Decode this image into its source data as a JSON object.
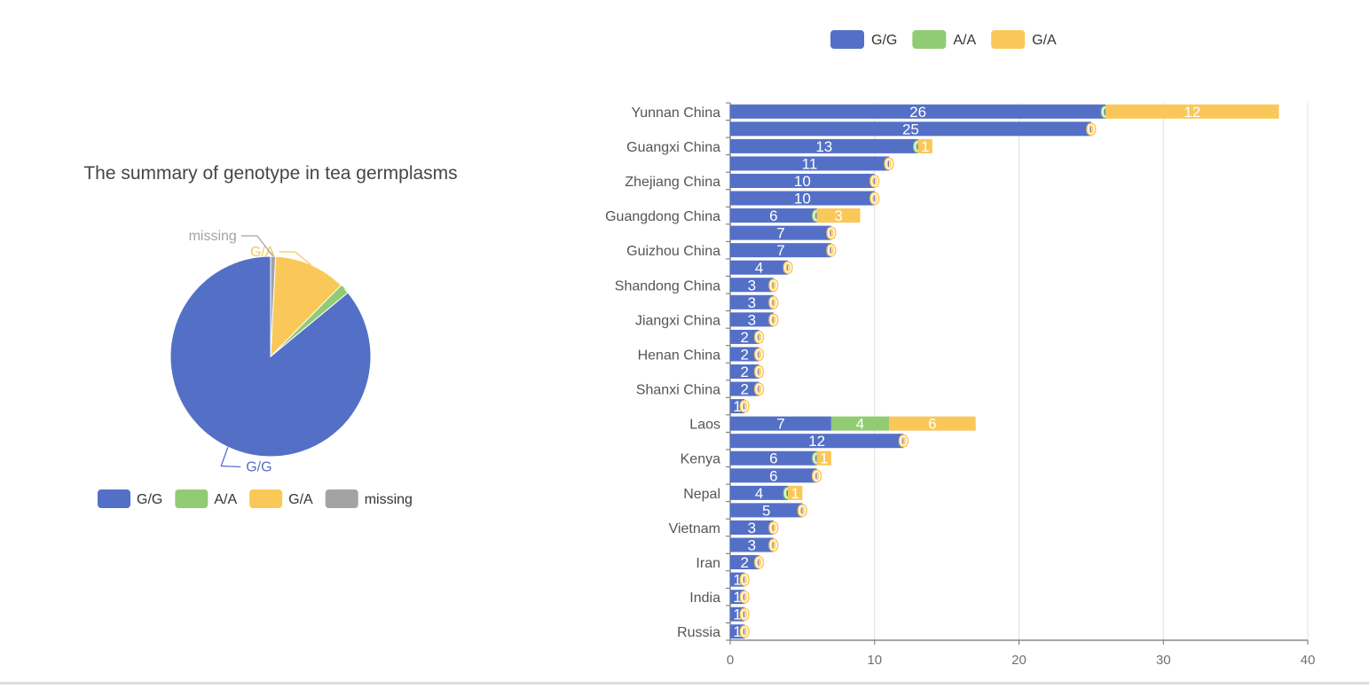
{
  "chart_data": [
    {
      "type": "pie",
      "title": "The summary of genotype in tea germplasms",
      "slices": [
        {
          "name": "G/G",
          "value": 86.0
        },
        {
          "name": "A/A",
          "value": 1.6
        },
        {
          "name": "G/A",
          "value": 11.6
        },
        {
          "name": "missing",
          "value": 0.8
        }
      ],
      "legend": {
        "placement": "bottom",
        "items": [
          "G/G",
          "A/A",
          "G/A",
          "missing"
        ]
      }
    },
    {
      "type": "bar",
      "orientation": "horizontal",
      "stacked": true,
      "title": "",
      "xlabel": "",
      "ylabel": "",
      "xlim": [
        0,
        40
      ],
      "x_ticks": [
        0,
        10,
        20,
        30,
        40
      ],
      "grid": true,
      "legend": {
        "placement": "top",
        "items": [
          "G/G",
          "A/A",
          "G/A"
        ]
      },
      "categories": [
        "Yunnan China",
        "",
        "Guangxi China",
        "",
        "Zhejiang China",
        "",
        "Guangdong China",
        "",
        "Guizhou China",
        "",
        "Shandong China",
        "",
        "Jiangxi China",
        "",
        "Henan China",
        "",
        "Shanxi China",
        "",
        "Laos",
        "",
        "Kenya",
        "",
        "Nepal",
        "",
        "Vietnam",
        "",
        "Iran",
        "",
        "India",
        "",
        "Russia"
      ],
      "series": [
        {
          "name": "G/G",
          "values": [
            26,
            25,
            13,
            11,
            10,
            10,
            6,
            7,
            7,
            4,
            3,
            3,
            3,
            2,
            2,
            2,
            2,
            1,
            7,
            12,
            6,
            6,
            4,
            5,
            3,
            3,
            2,
            1,
            1,
            1,
            1
          ]
        },
        {
          "name": "A/A",
          "values": [
            0,
            0,
            0,
            0,
            0,
            0,
            0,
            0,
            0,
            0,
            0,
            0,
            0,
            0,
            0,
            0,
            0,
            0,
            4,
            0,
            0,
            0,
            0,
            0,
            0,
            0,
            0,
            0,
            0,
            0,
            0
          ]
        },
        {
          "name": "G/A",
          "values": [
            12,
            0,
            1,
            0,
            0,
            0,
            3,
            0,
            0,
            0,
            0,
            0,
            0,
            0,
            0,
            0,
            0,
            0,
            6,
            0,
            1,
            0,
            1,
            0,
            0,
            0,
            0,
            0,
            0,
            0,
            0
          ]
        }
      ]
    }
  ],
  "colors": {
    "G/G": "#5470c6",
    "A/A": "#91cc75",
    "G/A": "#fac858",
    "missing": "#a3a3a3"
  }
}
